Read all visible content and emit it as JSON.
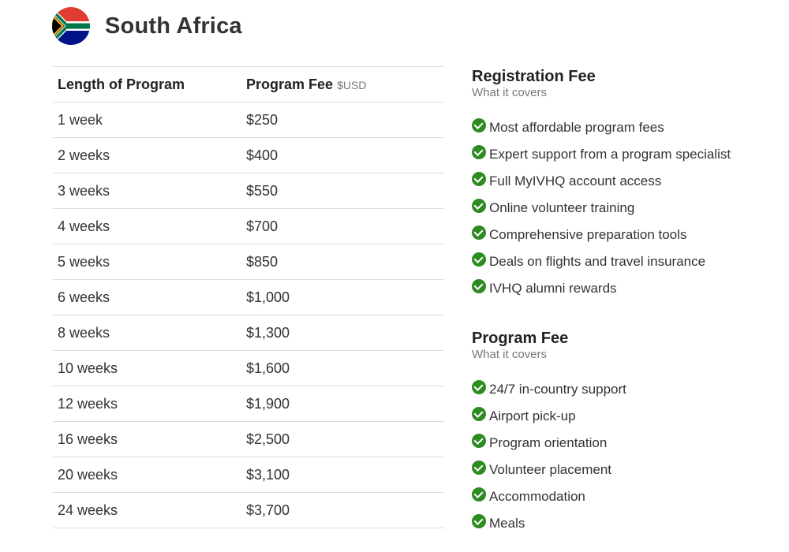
{
  "header": {
    "flag_icon": "south-africa-flag-icon",
    "country": "South Africa"
  },
  "table": {
    "headers": {
      "length": "Length of Program",
      "fee": "Program Fee",
      "currency": "$USD"
    },
    "rows": [
      {
        "length": "1 week",
        "fee": "$250"
      },
      {
        "length": "2 weeks",
        "fee": "$400"
      },
      {
        "length": "3 weeks",
        "fee": "$550"
      },
      {
        "length": "4 weeks",
        "fee": "$700"
      },
      {
        "length": "5 weeks",
        "fee": "$850"
      },
      {
        "length": "6 weeks",
        "fee": "$1,000"
      },
      {
        "length": "8 weeks",
        "fee": "$1,300"
      },
      {
        "length": "10 weeks",
        "fee": "$1,600"
      },
      {
        "length": "12 weeks",
        "fee": "$1,900"
      },
      {
        "length": "16 weeks",
        "fee": "$2,500"
      },
      {
        "length": "20 weeks",
        "fee": "$3,100"
      },
      {
        "length": "24 weeks",
        "fee": "$3,700"
      }
    ]
  },
  "registration": {
    "title": "Registration Fee",
    "subtitle": "What it covers",
    "items": [
      "Most affordable program fees",
      "Expert support from a program specialist",
      "Full MyIVHQ account access",
      "Online volunteer training",
      "Comprehensive preparation tools",
      "Deals on flights and travel insurance",
      "IVHQ alumni rewards"
    ]
  },
  "program": {
    "title": "Program Fee",
    "subtitle": "What it covers",
    "items": [
      "24/7 in-country support",
      "Airport pick-up",
      "Program orientation",
      "Volunteer placement",
      "Accommodation",
      "Meals"
    ]
  },
  "colors": {
    "check": "#2e8b22",
    "text": "#333333",
    "muted": "#777777",
    "border": "#dcdcdc"
  },
  "icons": {
    "list_bullet": "check-circle-icon"
  }
}
